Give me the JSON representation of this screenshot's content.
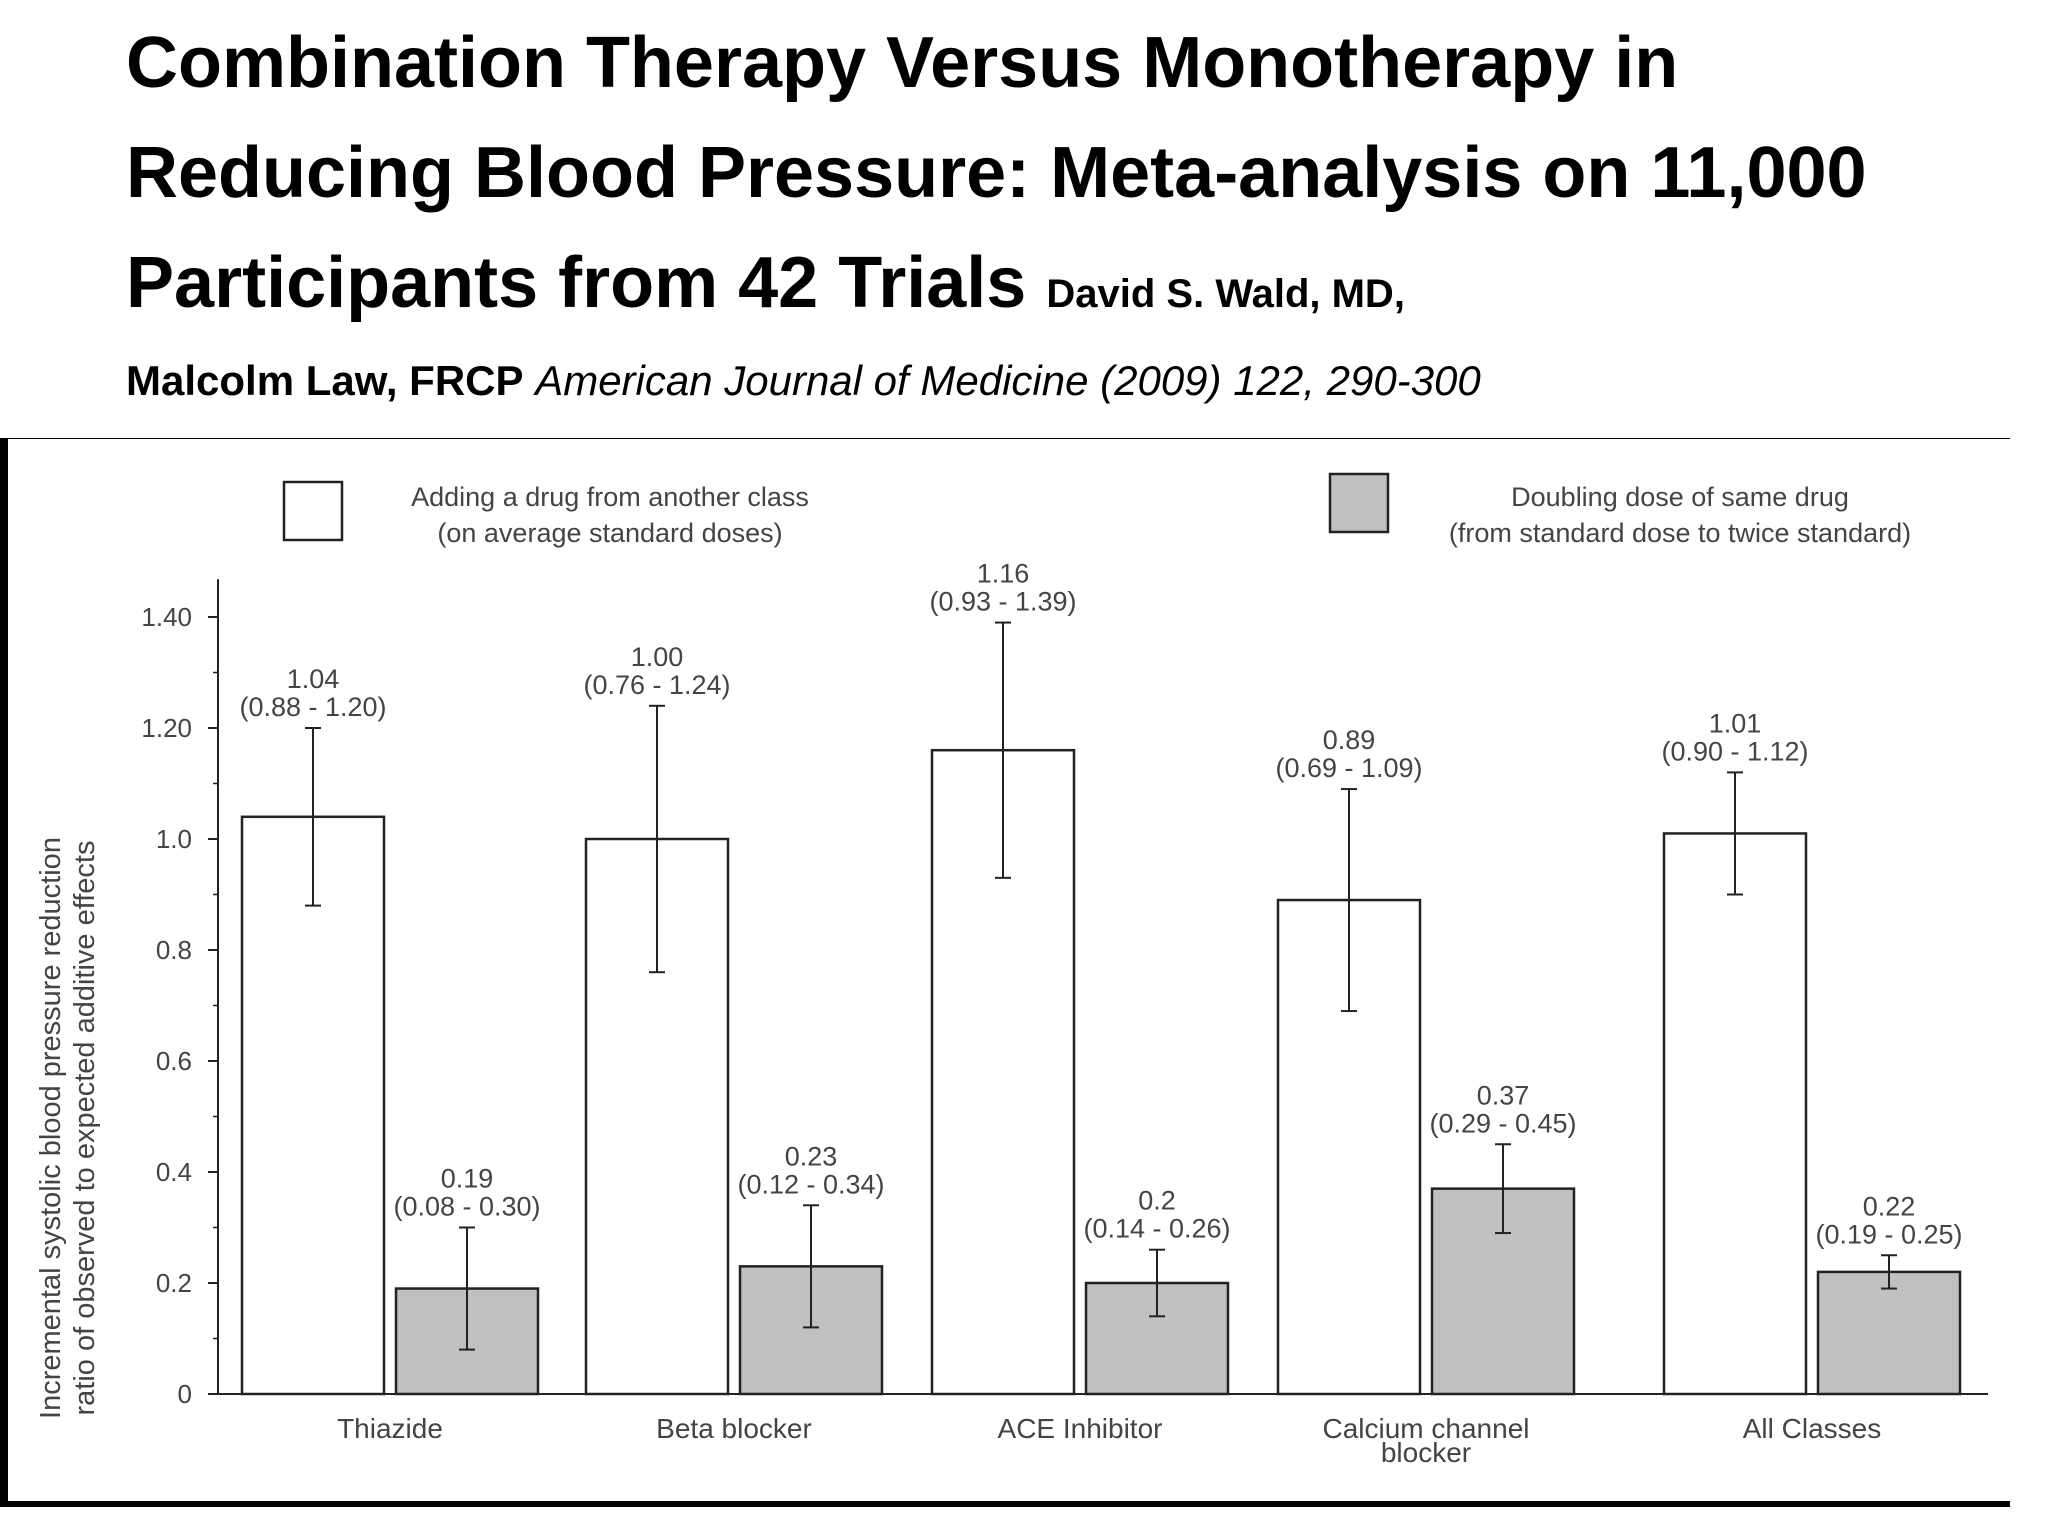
{
  "slide": {
    "title_main": "Combination Therapy Versus Monotherapy in Reducing Blood Pressure: Meta-analysis on 11,000 Participants from 42 Trials",
    "authors_1": "David S. Wald, MD,",
    "authors_2": "Malcolm Law, FRCP",
    "journal": "American Journal of Medicine (2009) 122, 290-300"
  },
  "chart_data": {
    "type": "bar",
    "title": "",
    "ylabel_line1": "Incremental systolic blood pressure reduction",
    "ylabel_line2": "ratio of observed to expected additive effects",
    "xlabel": "",
    "ylim": [
      0,
      1.45
    ],
    "yticks": [
      0,
      0.2,
      0.4,
      0.6,
      0.8,
      1.0,
      1.2,
      1.4
    ],
    "ytick_labels": [
      "0",
      "0.2",
      "0.4",
      "0.6",
      "0.8",
      "1.0",
      "1.20",
      "1.40"
    ],
    "categories": [
      "Thiazide",
      "Beta blocker",
      "ACE Inhibitor",
      "Calcium channel blocker",
      "All Classes"
    ],
    "category_labels": [
      [
        "Thiazide"
      ],
      [
        "Beta blocker"
      ],
      [
        "ACE Inhibitor"
      ],
      [
        "Calcium channel",
        "blocker"
      ],
      [
        "All Classes"
      ]
    ],
    "legend_position": "top",
    "series": [
      {
        "name": "Adding a drug from another class",
        "name_line2": "(on average standard doses)",
        "color": "#ffffff",
        "values": [
          1.04,
          1.0,
          1.16,
          0.89,
          1.01
        ],
        "ci_low": [
          0.88,
          0.76,
          0.93,
          0.69,
          0.9
        ],
        "ci_high": [
          1.2,
          1.24,
          1.39,
          1.09,
          1.12
        ],
        "value_labels": [
          "1.04",
          "1.00",
          "1.16",
          "0.89",
          "1.01"
        ],
        "ci_labels": [
          "(0.88 - 1.20)",
          "(0.76 - 1.24)",
          "(0.93 - 1.39)",
          "(0.69 - 1.09)",
          "(0.90 - 1.12)"
        ]
      },
      {
        "name": "Doubling dose of same drug",
        "name_line2": "(from standard dose to twice standard)",
        "color": "#c0c0c0",
        "values": [
          0.19,
          0.23,
          0.2,
          0.37,
          0.22
        ],
        "ci_low": [
          0.08,
          0.12,
          0.14,
          0.29,
          0.19
        ],
        "ci_high": [
          0.3,
          0.34,
          0.26,
          0.45,
          0.25
        ],
        "value_labels": [
          "0.19",
          "0.23",
          "0.2",
          "0.37",
          "0.22"
        ],
        "ci_labels": [
          "(0.08 - 0.30)",
          "(0.12 - 0.34)",
          "(0.14 - 0.26)",
          "(0.29 - 0.45)",
          "(0.19 - 0.25)"
        ]
      }
    ]
  }
}
